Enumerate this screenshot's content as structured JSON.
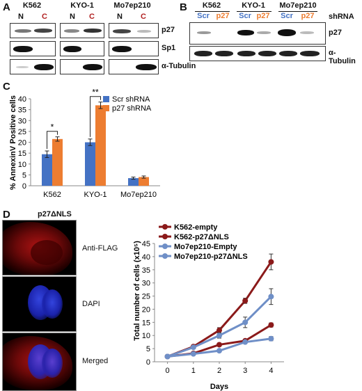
{
  "panels": {
    "a": "A",
    "b": "B",
    "c": "C",
    "d": "D"
  },
  "panelA": {
    "cell_lines": [
      "K562",
      "KYO-1",
      "Mo7ep210"
    ],
    "lane_n": "N",
    "lane_c": "C",
    "rows": [
      "p27",
      "Sp1",
      "α-Tubulin"
    ]
  },
  "panelB": {
    "cell_lines": [
      "K562",
      "KYO-1",
      "Mo7ep210"
    ],
    "lane_scr": "Scr",
    "lane_p27": "p27",
    "shrna": "shRNA",
    "rows": [
      "p27",
      "α-Tubulin"
    ]
  },
  "colors": {
    "scr": "#4472C4",
    "p27": "#ED7D31",
    "k562": "#8B1A1A",
    "mo7": "#6F8FC7"
  },
  "chart_c": {
    "type": "bar",
    "ylabel": "% AnnexinV Positive cells",
    "categories": [
      "K562",
      "KYO-1",
      "Mo7ep210"
    ],
    "series": [
      {
        "name": "Scr shRNA",
        "values": [
          14.5,
          20,
          3.5
        ],
        "errors": [
          1.5,
          1.5,
          0.5
        ]
      },
      {
        "name": "p27 shRNA",
        "values": [
          21.5,
          37,
          4
        ],
        "errors": [
          1,
          1.5,
          0.5
        ]
      }
    ],
    "ylim": [
      0,
      40
    ],
    "yticks": [
      0,
      5,
      10,
      15,
      20,
      25,
      30,
      35,
      40
    ],
    "significance": [
      "*",
      "**"
    ]
  },
  "panelD": {
    "title": "p27ΔNLS",
    "images": [
      "Anti-FLAG",
      "DAPI",
      "Merged"
    ]
  },
  "chart_data": {
    "type": "line",
    "xlabel": "Days",
    "ylabel": "Total number of cells (x10⁵)",
    "x": [
      0,
      1,
      2,
      3,
      4
    ],
    "ylim": [
      0,
      45
    ],
    "xlim": [
      -0.5,
      4.5
    ],
    "yticks": [
      0,
      5,
      10,
      15,
      20,
      25,
      30,
      35,
      40,
      45
    ],
    "series": [
      {
        "name": "K562-empty",
        "values": [
          2,
          3.2,
          6.5,
          8,
          14
        ],
        "errors": [
          0.3,
          0.4,
          0.6,
          0.6,
          0.8
        ]
      },
      {
        "name": "K562-p27ΔNLS",
        "values": [
          2,
          5.8,
          12,
          23.2,
          38
        ],
        "errors": [
          0.3,
          0.5,
          1,
          1,
          3
        ]
      },
      {
        "name": "Mo7ep210-Empty",
        "values": [
          2,
          3,
          4.2,
          7.5,
          8.8
        ],
        "errors": [
          0.2,
          0.3,
          0.4,
          0.5,
          0.8
        ]
      },
      {
        "name": "Mo7ep210-p27ΔNLS",
        "values": [
          2,
          5.5,
          10,
          15,
          24.8
        ],
        "errors": [
          0.3,
          0.5,
          1,
          2,
          3
        ]
      }
    ]
  }
}
